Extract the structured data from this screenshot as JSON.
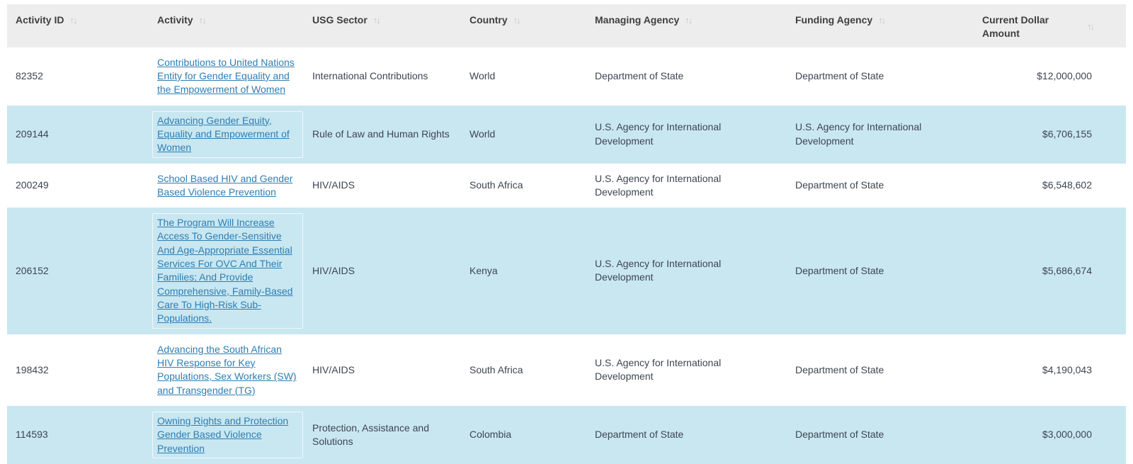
{
  "icons": {
    "sort": "↑↓"
  },
  "colors": {
    "header_bg": "#ededed",
    "shaded_row_bg": "#c9e7f1",
    "link": "#2d7eb3",
    "body_text": "#3d4551",
    "sort_icon": "#c6c6c6"
  },
  "table": {
    "columns": [
      {
        "key": "activity_id",
        "label": "Activity ID"
      },
      {
        "key": "activity",
        "label": "Activity"
      },
      {
        "key": "usg_sector",
        "label": "USG Sector"
      },
      {
        "key": "country",
        "label": "Country"
      },
      {
        "key": "managing_agency",
        "label": "Managing Agency"
      },
      {
        "key": "funding_agency",
        "label": "Funding Agency"
      },
      {
        "key": "current_dollar_amount",
        "label": "Current Dollar Amount"
      }
    ],
    "rows": [
      {
        "activity_id": "82352",
        "activity": "Contributions to United Nations Entity for Gender Equality and the Empowerment of Women",
        "usg_sector": "International Contributions",
        "country": "World",
        "managing_agency": "Department of State",
        "funding_agency": "Department of State",
        "current_dollar_amount": "$12,000,000"
      },
      {
        "activity_id": "209144",
        "activity": "Advancing Gender Equity, Equality and Empowerment of Women",
        "usg_sector": "Rule of Law and Human Rights",
        "country": "World",
        "managing_agency": "U.S. Agency for International Development",
        "funding_agency": "U.S. Agency for International Development",
        "current_dollar_amount": "$6,706,155"
      },
      {
        "activity_id": "200249",
        "activity": "School Based HIV and Gender Based Violence Prevention",
        "usg_sector": "HIV/AIDS",
        "country": "South Africa",
        "managing_agency": "U.S. Agency for International Development",
        "funding_agency": "Department of State",
        "current_dollar_amount": "$6,548,602"
      },
      {
        "activity_id": "206152",
        "activity": "The Program Will Increase Access To Gender-Sensitive And Age-Appropriate Essential Services For OVC And Their Families; And Provide Comprehensive, Family-Based Care To High-Risk Sub-Populations.",
        "usg_sector": "HIV/AIDS",
        "country": "Kenya",
        "managing_agency": "U.S. Agency for International Development",
        "funding_agency": "Department of State",
        "current_dollar_amount": "$5,686,674"
      },
      {
        "activity_id": "198432",
        "activity": "Advancing the South African HIV Response for Key Populations, Sex Workers (SW) and Transgender (TG)",
        "usg_sector": "HIV/AIDS",
        "country": "South Africa",
        "managing_agency": "U.S. Agency for International Development",
        "funding_agency": "Department of State",
        "current_dollar_amount": "$4,190,043"
      },
      {
        "activity_id": "114593",
        "activity": "Owning Rights and Protection Gender Based Violence Prevention",
        "usg_sector": "Protection, Assistance and Solutions",
        "country": "Colombia",
        "managing_agency": "Department of State",
        "funding_agency": "Department of State",
        "current_dollar_amount": "$3,000,000"
      }
    ]
  }
}
